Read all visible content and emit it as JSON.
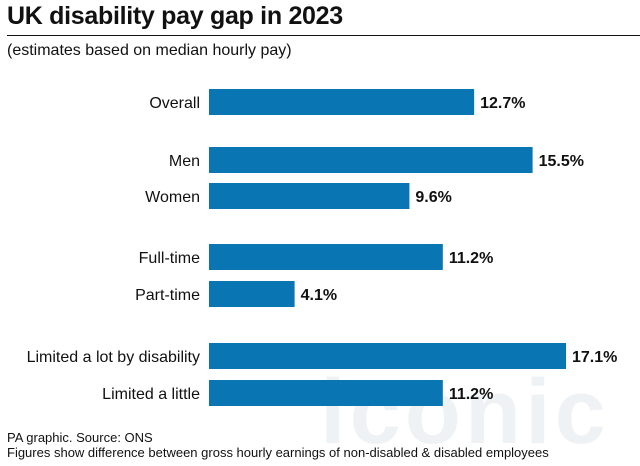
{
  "title": "UK disability pay gap in 2023",
  "subtitle": "(estimates based on median hourly pay)",
  "source": {
    "line1": "PA graphic. Source: ONS",
    "line2": "Figures show difference between gross hourly earnings of non-disabled & disabled employees"
  },
  "watermark": "iconic",
  "colors": {
    "bar": "#0a75b3",
    "text": "#111111"
  },
  "chart_data": {
    "type": "bar",
    "orientation": "horizontal",
    "title": "UK disability pay gap in 2023",
    "subtitle": "(estimates based on median hourly pay)",
    "categories": [
      "Overall",
      "Men",
      "Women",
      "Full-time",
      "Part-time",
      "Limited a lot by disability",
      "Limited a little"
    ],
    "values": [
      12.7,
      15.5,
      9.6,
      11.2,
      4.1,
      17.1,
      11.2
    ],
    "value_labels": [
      "12.7%",
      "15.5%",
      "9.6%",
      "11.2%",
      "4.1%",
      "17.1%",
      "11.2%"
    ],
    "groups": [
      [
        "Overall"
      ],
      [
        "Men",
        "Women"
      ],
      [
        "Full-time",
        "Part-time"
      ],
      [
        "Limited a lot by disability",
        "Limited a little"
      ]
    ],
    "unit": "%",
    "xlabel": "",
    "ylabel": "",
    "xlim": [
      0,
      17.1
    ],
    "grid": false,
    "legend": "none"
  }
}
